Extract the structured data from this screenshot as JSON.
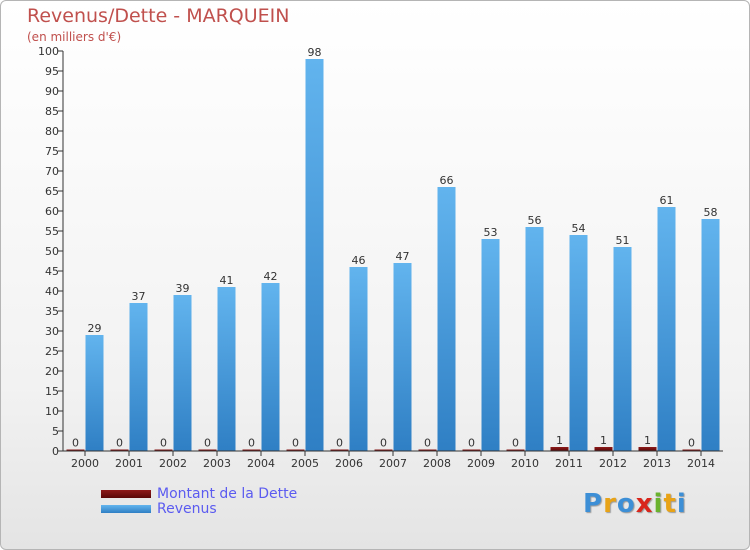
{
  "chart_data": {
    "type": "bar",
    "title": "Revenus/Dette - MARQUEIN",
    "subtitle": "(en milliers d'€)",
    "categories": [
      "2000",
      "2001",
      "2002",
      "2003",
      "2004",
      "2005",
      "2006",
      "2007",
      "2008",
      "2009",
      "2010",
      "2011",
      "2012",
      "2013",
      "2014"
    ],
    "series": [
      {
        "name": "Montant de la Dette",
        "color": "#7b1010",
        "values": [
          0,
          0,
          0,
          0,
          0,
          0,
          0,
          0,
          0,
          0,
          0,
          1,
          1,
          1,
          0
        ]
      },
      {
        "name": "Revenus",
        "color": "#4a9fe0",
        "values": [
          29,
          37,
          39,
          41,
          42,
          98,
          46,
          47,
          66,
          53,
          56,
          54,
          51,
          61,
          58
        ]
      }
    ],
    "ylim": [
      0,
      100
    ],
    "yticks": [
      0,
      5,
      10,
      15,
      20,
      25,
      30,
      35,
      40,
      45,
      50,
      55,
      60,
      65,
      70,
      75,
      80,
      85,
      90,
      95,
      100
    ],
    "xlabel": "",
    "ylabel": "",
    "grid": false,
    "legend": "bottom-left"
  },
  "brand": {
    "letters": [
      "P",
      "r",
      "o",
      "x",
      "i",
      "t",
      "i"
    ],
    "colors": [
      "#3d8fd6",
      "#e8a317",
      "#3d8fd6",
      "#d9261c",
      "#6ab22e",
      "#e8a317",
      "#3d8fd6"
    ]
  },
  "colors": {
    "title": "#c0504d",
    "legend_text": "#5b5bf0",
    "axis": "#333333"
  }
}
